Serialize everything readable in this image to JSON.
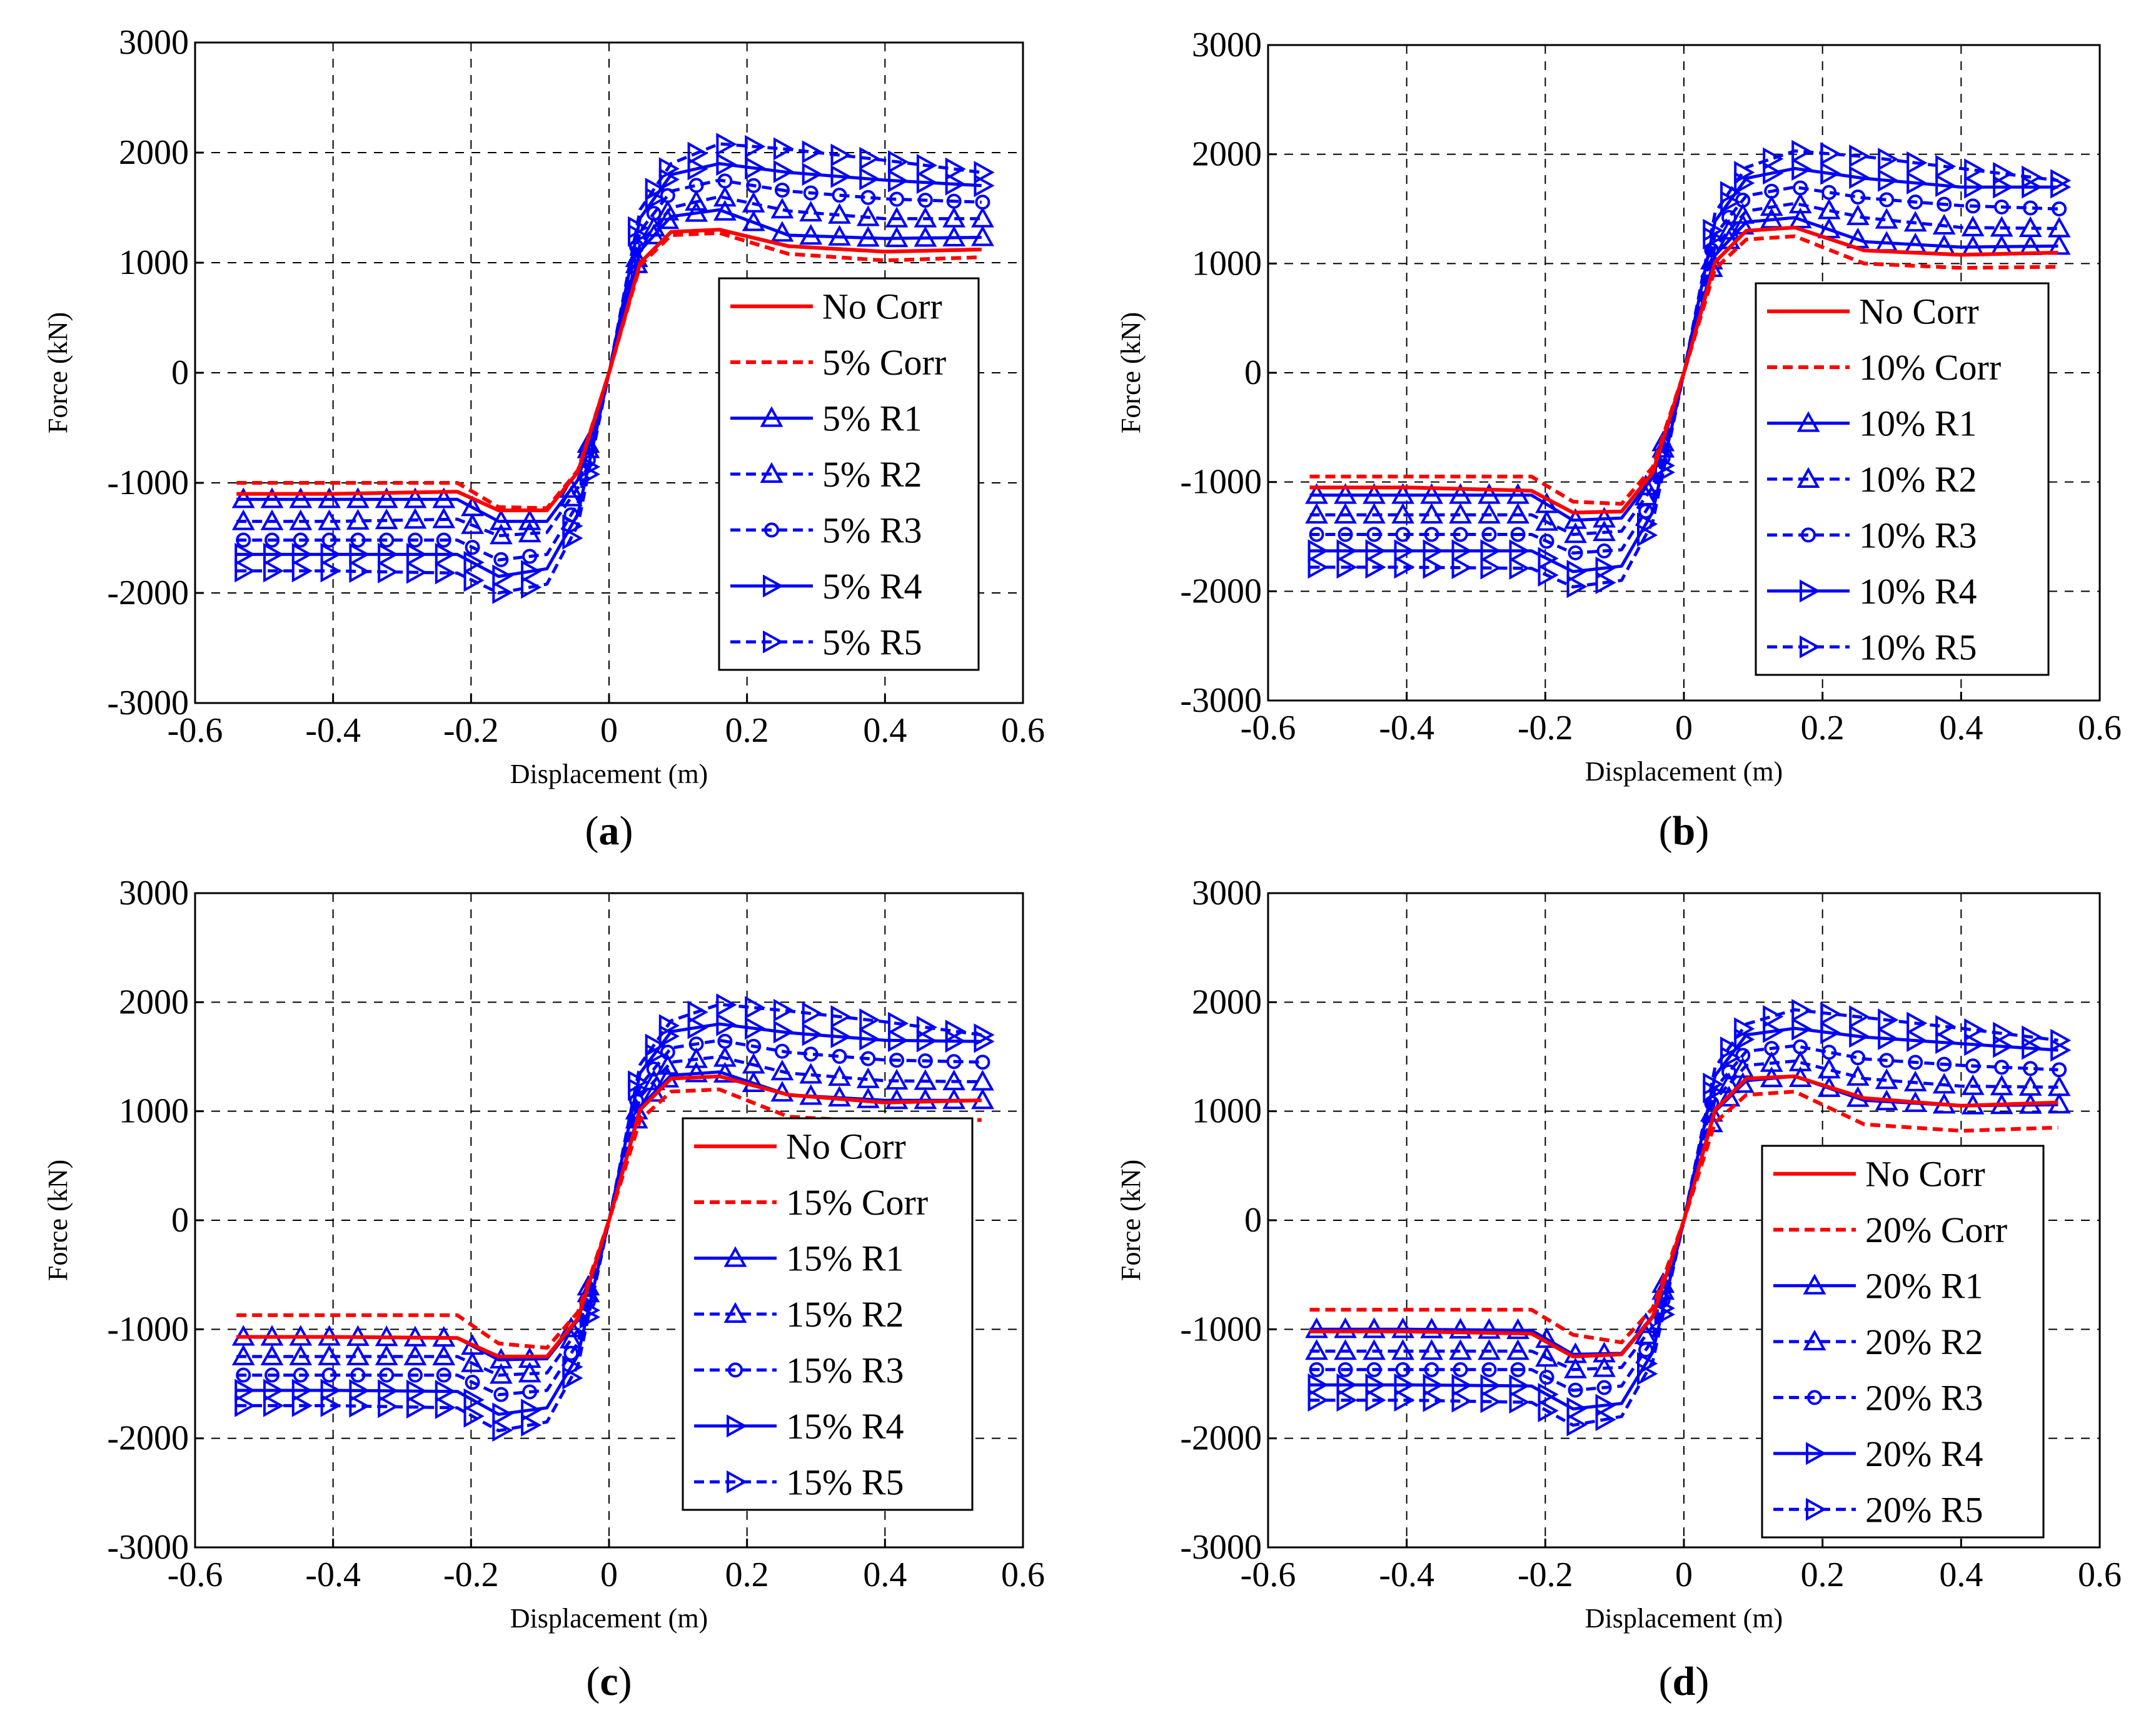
{
  "figure": {
    "colors": {
      "red": "#ff0000",
      "blue": "#0000ff",
      "grid": "#000000"
    }
  },
  "chart_data": [
    {
      "panel_label": "(a)",
      "type": "line",
      "xlabel": "Displacement (m)",
      "ylabel": "Force (kN)",
      "xlim": [
        -0.6,
        0.6
      ],
      "ylim": [
        -3000,
        3000
      ],
      "xticks": [
        -0.6,
        -0.4,
        -0.2,
        0,
        0.2,
        0.4,
        0.6
      ],
      "xtick_labels": [
        "-0.6",
        "-0.4",
        "-0.2",
        "0",
        "0.2",
        "0.4",
        "0.6"
      ],
      "yticks": [
        -3000,
        -2000,
        -1000,
        0,
        1000,
        2000,
        3000
      ],
      "ytick_labels": [
        "-3000",
        "-2000",
        "-1000",
        "0",
        "1000",
        "2000",
        "3000"
      ],
      "grid": true,
      "legend_position": "right",
      "series": [
        {
          "name": "No Corr",
          "style": "solid",
          "color": "#ff0000",
          "marker": "none",
          "neg": [
            -1100,
            -1100,
            -1080,
            -1250,
            -1250
          ],
          "pos": [
            1280,
            1300,
            1150,
            1100,
            1120
          ]
        },
        {
          "name": "5% Corr",
          "style": "dashed",
          "color": "#ff0000",
          "marker": "none",
          "neg": [
            -1000,
            -1000,
            -1000,
            -1220,
            -1230
          ],
          "pos": [
            1250,
            1270,
            1080,
            1020,
            1050
          ]
        },
        {
          "name": "5% R1",
          "style": "solid",
          "color": "#0000ff",
          "marker": "triangle-up",
          "neg": [
            -1150,
            -1150,
            -1150,
            -1350,
            -1350
          ],
          "pos": [
            1420,
            1480,
            1250,
            1220,
            1230
          ]
        },
        {
          "name": "5% R2",
          "style": "dashed",
          "color": "#0000ff",
          "marker": "triangle-up",
          "neg": [
            -1350,
            -1350,
            -1330,
            -1480,
            -1450
          ],
          "pos": [
            1500,
            1600,
            1470,
            1400,
            1400
          ]
        },
        {
          "name": "5% R3",
          "style": "dashed",
          "color": "#0000ff",
          "marker": "circle",
          "neg": [
            -1520,
            -1520,
            -1520,
            -1700,
            -1650
          ],
          "pos": [
            1650,
            1750,
            1650,
            1580,
            1550
          ]
        },
        {
          "name": "5% R4",
          "style": "solid",
          "color": "#0000ff",
          "marker": "triangle-right",
          "neg": [
            -1650,
            -1650,
            -1650,
            -1850,
            -1780
          ],
          "pos": [
            1800,
            1900,
            1820,
            1750,
            1700
          ]
        },
        {
          "name": "5% R5",
          "style": "dashed",
          "color": "#0000ff",
          "marker": "triangle-right",
          "neg": [
            -1800,
            -1800,
            -1820,
            -2000,
            -1920
          ],
          "pos": [
            1900,
            2080,
            2030,
            1930,
            1820
          ]
        }
      ]
    },
    {
      "panel_label": "(b)",
      "type": "line",
      "xlabel": "Displacement (m)",
      "ylabel": "Force (kN)",
      "xlim": [
        -0.6,
        0.6
      ],
      "ylim": [
        -3000,
        3000
      ],
      "xticks": [
        -0.6,
        -0.4,
        -0.2,
        0,
        0.2,
        0.4,
        0.6
      ],
      "xtick_labels": [
        "-0.6",
        "-0.4",
        "-0.2",
        "0",
        "0.2",
        "0.4",
        "0.6"
      ],
      "yticks": [
        -3000,
        -2000,
        -1000,
        0,
        1000,
        2000,
        3000
      ],
      "ytick_labels": [
        "-3000",
        "-2000",
        "-1000",
        "0",
        "1000",
        "2000",
        "3000"
      ],
      "grid": true,
      "legend_position": "right",
      "series": [
        {
          "name": "No Corr",
          "style": "solid",
          "color": "#ff0000",
          "marker": "none",
          "neg": [
            -1050,
            -1050,
            -1080,
            -1280,
            -1270
          ],
          "pos": [
            1300,
            1330,
            1120,
            1080,
            1100
          ]
        },
        {
          "name": "10% Corr",
          "style": "dashed",
          "color": "#ff0000",
          "marker": "none",
          "neg": [
            -950,
            -950,
            -950,
            -1180,
            -1200
          ],
          "pos": [
            1220,
            1250,
            1000,
            960,
            970
          ]
        },
        {
          "name": "10% R1",
          "style": "solid",
          "color": "#0000ff",
          "marker": "triangle-up",
          "neg": [
            -1120,
            -1120,
            -1120,
            -1350,
            -1330
          ],
          "pos": [
            1380,
            1420,
            1200,
            1150,
            1160
          ]
        },
        {
          "name": "10% R2",
          "style": "dashed",
          "color": "#0000ff",
          "marker": "triangle-up",
          "neg": [
            -1300,
            -1300,
            -1300,
            -1480,
            -1450
          ],
          "pos": [
            1480,
            1550,
            1420,
            1330,
            1320
          ]
        },
        {
          "name": "10% R3",
          "style": "dashed",
          "color": "#0000ff",
          "marker": "circle",
          "neg": [
            -1480,
            -1480,
            -1480,
            -1650,
            -1620
          ],
          "pos": [
            1620,
            1700,
            1600,
            1530,
            1500
          ]
        },
        {
          "name": "10% R4",
          "style": "solid",
          "color": "#0000ff",
          "marker": "triangle-right",
          "neg": [
            -1630,
            -1630,
            -1630,
            -1820,
            -1770
          ],
          "pos": [
            1780,
            1870,
            1780,
            1700,
            1700
          ]
        },
        {
          "name": "10% R5",
          "style": "dashed",
          "color": "#0000ff",
          "marker": "triangle-right",
          "neg": [
            -1780,
            -1780,
            -1790,
            -1960,
            -1900
          ],
          "pos": [
            1880,
            2030,
            1980,
            1870,
            1760
          ]
        }
      ]
    },
    {
      "panel_label": "(c)",
      "type": "line",
      "xlabel": "Displacement (m)",
      "ylabel": "Force (kN)",
      "xlim": [
        -0.6,
        0.6
      ],
      "ylim": [
        -3000,
        3000
      ],
      "xticks": [
        -0.6,
        -0.4,
        -0.2,
        0,
        0.2,
        0.4,
        0.6
      ],
      "xtick_labels": [
        "-0.6",
        "-0.4",
        "-0.2",
        "0",
        "0.2",
        "0.4",
        "0.6"
      ],
      "yticks": [
        -3000,
        -2000,
        -1000,
        0,
        1000,
        2000,
        3000
      ],
      "ytick_labels": [
        "-3000",
        "-2000",
        "-1000",
        "0",
        "1000",
        "2000",
        "3000"
      ],
      "grid": true,
      "legend_position": "right",
      "series": [
        {
          "name": "No Corr",
          "style": "solid",
          "color": "#ff0000",
          "marker": "none",
          "neg": [
            -1070,
            -1070,
            -1080,
            -1250,
            -1250
          ],
          "pos": [
            1300,
            1320,
            1150,
            1080,
            1100
          ]
        },
        {
          "name": "15% Corr",
          "style": "dashed",
          "color": "#ff0000",
          "marker": "none",
          "neg": [
            -870,
            -870,
            -870,
            -1130,
            -1170
          ],
          "pos": [
            1180,
            1200,
            950,
            900,
            920
          ]
        },
        {
          "name": "15% R1",
          "style": "solid",
          "color": "#0000ff",
          "marker": "triangle-up",
          "neg": [
            -1070,
            -1070,
            -1080,
            -1280,
            -1270
          ],
          "pos": [
            1330,
            1360,
            1150,
            1100,
            1100
          ]
        },
        {
          "name": "15% R2",
          "style": "dashed",
          "color": "#0000ff",
          "marker": "triangle-up",
          "neg": [
            -1250,
            -1250,
            -1250,
            -1420,
            -1400
          ],
          "pos": [
            1450,
            1500,
            1350,
            1280,
            1270
          ]
        },
        {
          "name": "15% R3",
          "style": "dashed",
          "color": "#0000ff",
          "marker": "circle",
          "neg": [
            -1420,
            -1420,
            -1420,
            -1600,
            -1560
          ],
          "pos": [
            1580,
            1650,
            1540,
            1470,
            1450
          ]
        },
        {
          "name": "15% R4",
          "style": "solid",
          "color": "#0000ff",
          "marker": "triangle-right",
          "neg": [
            -1560,
            -1560,
            -1570,
            -1780,
            -1720
          ],
          "pos": [
            1730,
            1800,
            1720,
            1650,
            1640
          ]
        },
        {
          "name": "15% R5",
          "style": "dashed",
          "color": "#0000ff",
          "marker": "triangle-right",
          "neg": [
            -1700,
            -1700,
            -1720,
            -1930,
            -1850
          ],
          "pos": [
            1830,
            1980,
            1920,
            1820,
            1700
          ]
        }
      ]
    },
    {
      "panel_label": "(d)",
      "type": "line",
      "xlabel": "Displacement (m)",
      "ylabel": "Force (kN)",
      "xlim": [
        -0.6,
        0.6
      ],
      "ylim": [
        -3000,
        3000
      ],
      "xticks": [
        -0.6,
        -0.4,
        -0.2,
        0,
        0.2,
        0.4,
        0.6
      ],
      "xtick_labels": [
        "-0.6",
        "-0.4",
        "-0.2",
        "0",
        "0.2",
        "0.4",
        "0.6"
      ],
      "yticks": [
        -3000,
        -2000,
        -1000,
        0,
        1000,
        2000,
        3000
      ],
      "ytick_labels": [
        "-3000",
        "-2000",
        "-1000",
        "0",
        "1000",
        "2000",
        "3000"
      ],
      "grid": true,
      "legend_position": "right",
      "series": [
        {
          "name": "No Corr",
          "style": "solid",
          "color": "#ff0000",
          "marker": "none",
          "neg": [
            -1020,
            -1020,
            -1040,
            -1250,
            -1230
          ],
          "pos": [
            1300,
            1320,
            1120,
            1050,
            1080
          ]
        },
        {
          "name": "20% Corr",
          "style": "dashed",
          "color": "#ff0000",
          "marker": "none",
          "neg": [
            -820,
            -820,
            -820,
            -1050,
            -1120
          ],
          "pos": [
            1150,
            1180,
            880,
            820,
            850
          ]
        },
        {
          "name": "20% R1",
          "style": "solid",
          "color": "#0000ff",
          "marker": "triangle-up",
          "neg": [
            -1000,
            -1000,
            -1010,
            -1230,
            -1220
          ],
          "pos": [
            1280,
            1320,
            1100,
            1050,
            1060
          ]
        },
        {
          "name": "20% R2",
          "style": "dashed",
          "color": "#0000ff",
          "marker": "triangle-up",
          "neg": [
            -1200,
            -1200,
            -1200,
            -1370,
            -1350
          ],
          "pos": [
            1420,
            1460,
            1300,
            1230,
            1220
          ]
        },
        {
          "name": "20% R3",
          "style": "dashed",
          "color": "#0000ff",
          "marker": "circle",
          "neg": [
            -1370,
            -1370,
            -1370,
            -1560,
            -1520
          ],
          "pos": [
            1550,
            1600,
            1480,
            1420,
            1380
          ]
        },
        {
          "name": "20% R4",
          "style": "solid",
          "color": "#0000ff",
          "marker": "triangle-right",
          "neg": [
            -1510,
            -1510,
            -1520,
            -1730,
            -1680
          ],
          "pos": [
            1700,
            1760,
            1680,
            1620,
            1560
          ]
        },
        {
          "name": "20% R5",
          "style": "dashed",
          "color": "#0000ff",
          "marker": "triangle-right",
          "neg": [
            -1650,
            -1650,
            -1670,
            -1880,
            -1800
          ],
          "pos": [
            1800,
            1930,
            1860,
            1760,
            1650
          ]
        }
      ]
    }
  ]
}
